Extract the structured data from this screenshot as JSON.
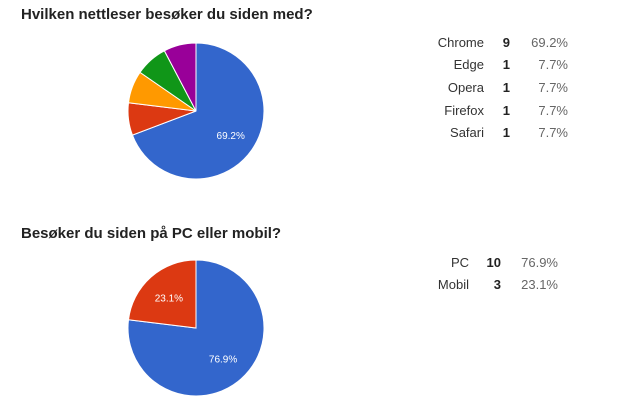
{
  "chart_data": [
    {
      "type": "pie",
      "title": "Hvilken nettleser besøker du siden med?",
      "categories": [
        "Chrome",
        "Edge",
        "Opera",
        "Firefox",
        "Safari"
      ],
      "values": [
        9,
        1,
        1,
        1,
        1
      ],
      "percent_labels": [
        "69.2%",
        "7.7%",
        "7.7%",
        "7.7%",
        "7.7%"
      ],
      "count_labels": [
        "9",
        "1",
        "1",
        "1",
        "1"
      ],
      "colors": [
        "#3366cc",
        "#dc3912",
        "#ff9900",
        "#109618",
        "#990099"
      ],
      "slice_labels": [
        "69.2%",
        "",
        "",
        "",
        ""
      ],
      "legend_placement": "right"
    },
    {
      "type": "pie",
      "title": "Besøker du siden på PC eller mobil?",
      "categories": [
        "PC",
        "Mobil"
      ],
      "values": [
        10,
        3
      ],
      "percent_labels": [
        "76.9%",
        "23.1%"
      ],
      "count_labels": [
        "10",
        "3"
      ],
      "colors": [
        "#3366cc",
        "#dc3912"
      ],
      "slice_labels": [
        "76.9%",
        "23.1%"
      ],
      "legend_placement": "right"
    }
  ]
}
